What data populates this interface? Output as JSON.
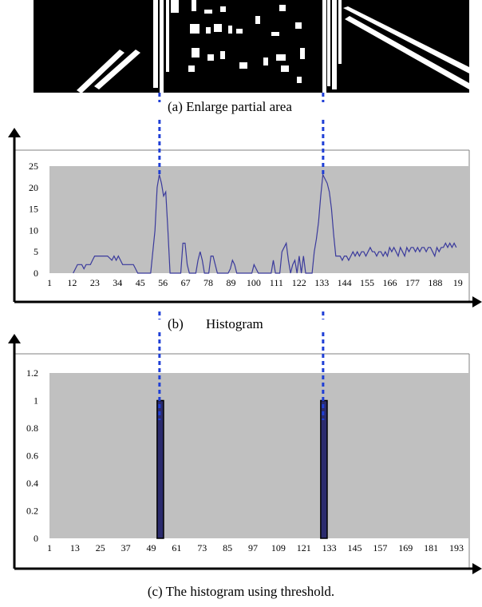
{
  "captions": {
    "a": "(a) Enlarge partial area",
    "b_prefix": "(b)",
    "b_title": "Histogram",
    "c": "(c) The histogram using threshold."
  },
  "colors": {
    "plot_bg": "#c0c0c0",
    "series": "#3a3a9c",
    "guide": "#1f3fd6",
    "bar_fill": "#2b2b6e",
    "axis": "#000000"
  },
  "chart_data": [
    {
      "type": "line",
      "title": "Histogram",
      "xlabel": "",
      "ylabel": "",
      "ylim": [
        0,
        25
      ],
      "yticks": [
        0,
        5,
        10,
        15,
        20,
        25
      ],
      "xtick_labels": [
        "1",
        "12",
        "23",
        "34",
        "45",
        "56",
        "67",
        "78",
        "89",
        "100",
        "111",
        "122",
        "133",
        "144",
        "155",
        "166",
        "177",
        "188",
        "19"
      ],
      "grid": false,
      "series": [
        {
          "points": [
            [
              12,
              0
            ],
            [
              14,
              2
            ],
            [
              16,
              2
            ],
            [
              17,
              1
            ],
            [
              18,
              2
            ],
            [
              20,
              2
            ],
            [
              21,
              3
            ],
            [
              22,
              4
            ],
            [
              28,
              4
            ],
            [
              30,
              3
            ],
            [
              31,
              4
            ],
            [
              32,
              3
            ],
            [
              33,
              4
            ],
            [
              34,
              3
            ],
            [
              35,
              2
            ],
            [
              40,
              2
            ],
            [
              41,
              1
            ],
            [
              42,
              0
            ],
            [
              48,
              0
            ],
            [
              50,
              10
            ],
            [
              51,
              20
            ],
            [
              52,
              23
            ],
            [
              53,
              21
            ],
            [
              54,
              18
            ],
            [
              55,
              19
            ],
            [
              56,
              10
            ],
            [
              57,
              0
            ],
            [
              62,
              0
            ],
            [
              63,
              7
            ],
            [
              64,
              7
            ],
            [
              65,
              2
            ],
            [
              66,
              0
            ],
            [
              69,
              0
            ],
            [
              70,
              3
            ],
            [
              71,
              5
            ],
            [
              72,
              3
            ],
            [
              73,
              0
            ],
            [
              75,
              0
            ],
            [
              76,
              4
            ],
            [
              77,
              4
            ],
            [
              78,
              2
            ],
            [
              79,
              0
            ],
            [
              84,
              0
            ],
            [
              85,
              1
            ],
            [
              86,
              3
            ],
            [
              87,
              2
            ],
            [
              88,
              0
            ],
            [
              95,
              0
            ],
            [
              96,
              2
            ],
            [
              97,
              1
            ],
            [
              98,
              0
            ],
            [
              104,
              0
            ],
            [
              105,
              3
            ],
            [
              106,
              0
            ],
            [
              108,
              0
            ],
            [
              109,
              5
            ],
            [
              110,
              6
            ],
            [
              111,
              7
            ],
            [
              112,
              3
            ],
            [
              113,
              0
            ],
            [
              114,
              2
            ],
            [
              115,
              3
            ],
            [
              116,
              0
            ],
            [
              117,
              4
            ],
            [
              118,
              0
            ],
            [
              119,
              4
            ],
            [
              120,
              0
            ],
            [
              123,
              0
            ],
            [
              124,
              5
            ],
            [
              125,
              8
            ],
            [
              126,
              12
            ],
            [
              127,
              18
            ],
            [
              128,
              23
            ],
            [
              129,
              22
            ],
            [
              130,
              21
            ],
            [
              131,
              19
            ],
            [
              132,
              15
            ],
            [
              133,
              9
            ],
            [
              134,
              4
            ],
            [
              136,
              4
            ],
            [
              137,
              3
            ],
            [
              138,
              4
            ],
            [
              139,
              4
            ],
            [
              140,
              3
            ],
            [
              141,
              4
            ],
            [
              142,
              5
            ],
            [
              143,
              4
            ],
            [
              144,
              5
            ],
            [
              145,
              4
            ],
            [
              146,
              5
            ],
            [
              147,
              5
            ],
            [
              148,
              4
            ],
            [
              149,
              5
            ],
            [
              150,
              6
            ],
            [
              151,
              5
            ],
            [
              152,
              5
            ],
            [
              153,
              4
            ],
            [
              154,
              5
            ],
            [
              155,
              5
            ],
            [
              156,
              4
            ],
            [
              157,
              5
            ],
            [
              158,
              4
            ],
            [
              159,
              6
            ],
            [
              160,
              5
            ],
            [
              161,
              6
            ],
            [
              162,
              5
            ],
            [
              163,
              4
            ],
            [
              164,
              6
            ],
            [
              165,
              5
            ],
            [
              166,
              4
            ],
            [
              167,
              6
            ],
            [
              168,
              5
            ],
            [
              169,
              6
            ],
            [
              170,
              6
            ],
            [
              171,
              5
            ],
            [
              172,
              6
            ],
            [
              173,
              5
            ],
            [
              174,
              6
            ],
            [
              175,
              6
            ],
            [
              176,
              5
            ],
            [
              177,
              6
            ],
            [
              178,
              6
            ],
            [
              179,
              5
            ],
            [
              180,
              4
            ],
            [
              181,
              6
            ],
            [
              182,
              5
            ],
            [
              183,
              6
            ],
            [
              184,
              6
            ],
            [
              185,
              7
            ],
            [
              186,
              6
            ],
            [
              187,
              7
            ],
            [
              188,
              6
            ],
            [
              189,
              7
            ],
            [
              190,
              6
            ]
          ]
        }
      ]
    },
    {
      "type": "bar",
      "title": "The histogram using threshold.",
      "xlabel": "",
      "ylabel": "",
      "ylim": [
        0,
        1.2
      ],
      "yticks": [
        "0",
        "0.2",
        "0.4",
        "0.6",
        "0.8",
        "1",
        "1.2"
      ],
      "xtick_labels": [
        "1",
        "13",
        "25",
        "37",
        "49",
        "61",
        "73",
        "85",
        "97",
        "109",
        "121",
        "133",
        "145",
        "157",
        "169",
        "181",
        "193"
      ],
      "grid": false,
      "bars": [
        {
          "x_start": 51,
          "x_end": 54,
          "value": 1
        },
        {
          "x_start": 127,
          "x_end": 130,
          "value": 1
        }
      ]
    }
  ]
}
